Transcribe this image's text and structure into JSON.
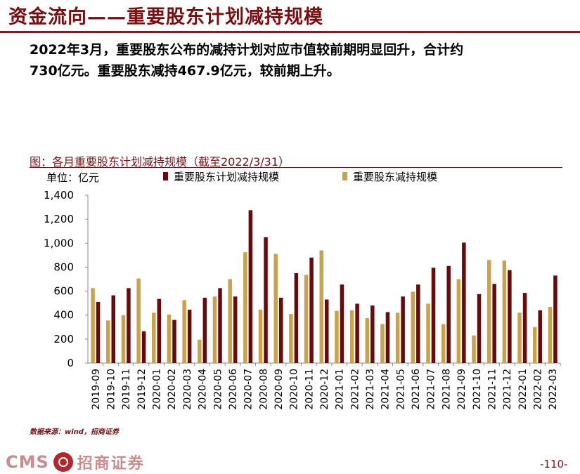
{
  "header": {
    "title": "资金流向——重要股东计划减持规模",
    "lead_line1": "2022年3月，重要股东公布的减持计划对应市值较前期明显回升，合计约",
    "lead_line2": "730亿元。重要股东减持467.9亿元，较前期上升。"
  },
  "chart_caption": "图：各月重要股东计划减持规模（截至2022/3/31）",
  "source": "数据来源：wind，招商证券",
  "footer": {
    "cms_label": "CMS",
    "brand_label": "招商证券",
    "page_number": "-110-"
  },
  "colors": {
    "planned": "#6b0a0d",
    "actual": "#c9a24a",
    "accent": "#7a0f12"
  },
  "chart_data": {
    "type": "bar",
    "unit_label": "单位：亿元",
    "ylim": [
      0,
      1400
    ],
    "yticks": [
      0,
      200,
      400,
      600,
      800,
      1000,
      1200,
      1400
    ],
    "ytick_labels": [
      "0",
      "200",
      "400",
      "600",
      "800",
      "1,000",
      "1,200",
      "1,400"
    ],
    "legend_position": "top",
    "categories": [
      "2019-09",
      "2019-10",
      "2019-11",
      "2019-12",
      "2020-01",
      "2020-02",
      "2020-03",
      "2020-04",
      "2020-05",
      "2020-06",
      "2020-07",
      "2020-08",
      "2020-09",
      "2020-10",
      "2020-11",
      "2020-12",
      "2021-01",
      "2021-02",
      "2021-03",
      "2021-04",
      "2021-05",
      "2021-06",
      "2021-07",
      "2021-08",
      "2021-09",
      "2021-10",
      "2021-11",
      "2021-12",
      "2022-01",
      "2022-02",
      "2022-03"
    ],
    "series": [
      {
        "name": "重要股东计划减持规模",
        "color_key": "planned",
        "values": [
          510,
          565,
          625,
          265,
          535,
          360,
          445,
          545,
          625,
          555,
          1275,
          1050,
          545,
          750,
          880,
          530,
          655,
          495,
          480,
          425,
          555,
          655,
          795,
          810,
          1005,
          575,
          660,
          775,
          585,
          440,
          730
        ]
      },
      {
        "name": "重要股东减持规模",
        "color_key": "actual",
        "values": [
          625,
          355,
          400,
          705,
          420,
          405,
          525,
          195,
          555,
          700,
          925,
          445,
          910,
          410,
          735,
          940,
          435,
          440,
          375,
          325,
          420,
          595,
          495,
          325,
          700,
          230,
          860,
          855,
          420,
          300,
          468
        ]
      }
    ]
  }
}
